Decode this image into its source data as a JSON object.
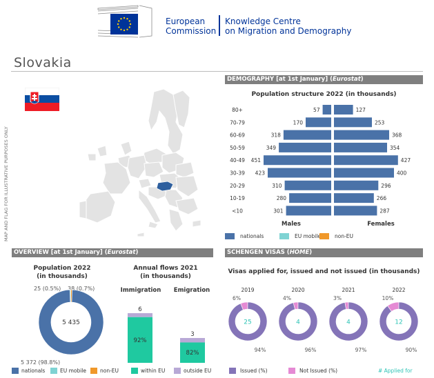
{
  "header": {
    "org_line1": "European",
    "org_line2": "Commission",
    "kc_line1": "Knowledge Centre",
    "kc_line2": "on Migration and Demography"
  },
  "country": "Slovakia",
  "map": {
    "disclaimer": "MAP AND FLAG FOR ILLUSTRATIVE PURPOSES ONLY"
  },
  "colors": {
    "nationals": "#4a72a8",
    "eu_mobile": "#7fd3d3",
    "non_eu": "#f0982a",
    "within_eu": "#1fc9a0",
    "outside_eu": "#b8a9d6",
    "issued": "#8474b8",
    "not_issued": "#e58ad4",
    "applied_for": "#2ec4b6",
    "section_bar": "#7f7f7f"
  },
  "demography": {
    "section_title": "DEMOGRAPHY [at 1st January]",
    "section_source": "Eurostat",
    "chart_title": "Population structure 2022 (in thousands)",
    "males_label": "Males",
    "females_label": "Females",
    "legend": [
      "nationals",
      "EU mobile",
      "non-EU"
    ]
  },
  "overview": {
    "section_title": "OVERVIEW [at 1st January]",
    "section_source": "Eurostat",
    "pop_title_line1": "Population 2022",
    "pop_title_line2": "(in thousands)",
    "donut_center": "5 435",
    "label_eu_mobile": "25 (0.5%)",
    "label_non_eu": "38 (0.7%)",
    "label_nationals": "5 372 (98.8%)",
    "flows_title_line1": "Annual flows 2021",
    "flows_title_line2": "(in thousands)",
    "immigration_label": "Immigration",
    "emigration_label": "Emigration",
    "legend": [
      "nationals",
      "EU mobile",
      "non-EU",
      "within EU",
      "outside EU"
    ]
  },
  "schengen": {
    "section_title": "SCHENGEN VISAS",
    "section_source": "HOME",
    "chart_title": "Visas applied for, issued and not issued (in thousands)",
    "legend": [
      "Issued (%)",
      "Not Issued (%)",
      "# Applied for"
    ]
  },
  "chart_data": [
    {
      "type": "bar",
      "title": "Population structure 2022 (in thousands)",
      "categories": [
        "80+",
        "70-79",
        "60-69",
        "50-59",
        "40-49",
        "30-39",
        "20-29",
        "10-19",
        "<10"
      ],
      "series": [
        {
          "name": "Males",
          "values": [
            57,
            170,
            318,
            349,
            451,
            423,
            310,
            280,
            301
          ]
        },
        {
          "name": "Females",
          "values": [
            127,
            253,
            368,
            354,
            427,
            400,
            296,
            266,
            287
          ]
        }
      ]
    },
    {
      "type": "pie",
      "title": "Population 2022 (in thousands)",
      "total": 5435,
      "slices": [
        {
          "name": "nationals",
          "value": 5372,
          "pct": 98.8
        },
        {
          "name": "EU mobile",
          "value": 25,
          "pct": 0.5
        },
        {
          "name": "non-EU",
          "value": 38,
          "pct": 0.7
        }
      ]
    },
    {
      "type": "bar",
      "title": "Annual flows 2021 (in thousands)",
      "categories": [
        "Immigration",
        "Emigration"
      ],
      "totals": [
        6,
        3
      ],
      "within_eu_pct": [
        92,
        82
      ]
    },
    {
      "type": "pie",
      "title": "Visas applied for, issued and not issued (in thousands)",
      "categories": [
        "2019",
        "2020",
        "2021",
        "2022"
      ],
      "applied_for": [
        25,
        4,
        4,
        12
      ],
      "issued_pct": [
        94,
        96,
        97,
        90
      ],
      "not_issued_pct": [
        6,
        4,
        3,
        10
      ]
    }
  ]
}
